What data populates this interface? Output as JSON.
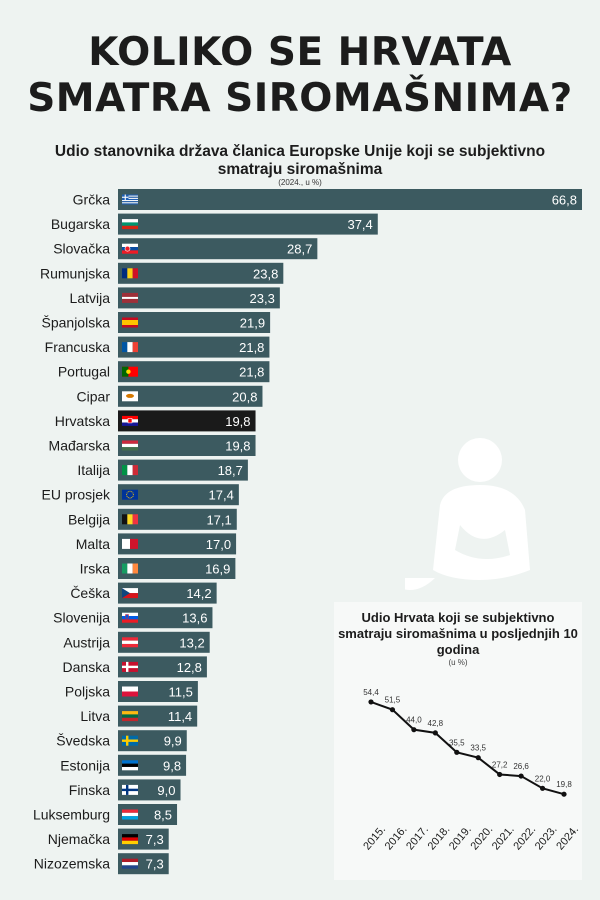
{
  "header": {
    "title_line1": "KOLIKO SE HRVATA",
    "title_line2": "SMATRA SIROMAŠNIMA?",
    "subtitle": "Udio stanovnika država članica Europske Unije koji se subjektivno smatraju siromašnima",
    "unit": "(2024., u %)"
  },
  "colors": {
    "bar": "#3c5a60",
    "highlight": "#1a1a1a",
    "background": "#eef3f1",
    "line": "#111111"
  },
  "chart_data": [
    {
      "type": "bar",
      "orientation": "horizontal",
      "title": "Udio stanovnika država članica Europske Unije koji se subjektivno smatraju siromašnima",
      "unit": "(2024., u %)",
      "xlim": [
        0,
        66.8
      ],
      "highlight": "Hrvatska",
      "categories": [
        "Grčka",
        "Bugarska",
        "Slovačka",
        "Rumunjska",
        "Latvija",
        "Španjolska",
        "Francuska",
        "Portugal",
        "Cipar",
        "Hrvatska",
        "Mađarska",
        "Italija",
        "EU prosjek",
        "Belgija",
        "Malta",
        "Irska",
        "Češka",
        "Slovenija",
        "Austrija",
        "Danska",
        "Poljska",
        "Litva",
        "Švedska",
        "Estonija",
        "Finska",
        "Luksemburg",
        "Njemačka",
        "Nizozemska"
      ],
      "values": [
        66.8,
        37.4,
        28.7,
        23.8,
        23.3,
        21.9,
        21.8,
        21.8,
        20.8,
        19.8,
        19.8,
        18.7,
        17.4,
        17.1,
        17.0,
        16.9,
        14.2,
        13.6,
        13.2,
        12.8,
        11.5,
        11.4,
        9.9,
        9.8,
        9.0,
        8.5,
        7.3,
        7.3
      ],
      "labels": [
        "66,8",
        "37,4",
        "28,7",
        "23,8",
        "23,3",
        "21,9",
        "21,8",
        "21,8",
        "20,8",
        "19,8",
        "19,8",
        "18,7",
        "17,4",
        "17,1",
        "17,0",
        "16,9",
        "14,2",
        "13,6",
        "13,2",
        "12,8",
        "11,5",
        "11,4",
        "9,9",
        "9,8",
        "9,0",
        "8,5",
        "7,3",
        "7,3"
      ],
      "flags": [
        "greece-flag-icon",
        "bulgaria-flag-icon",
        "slovakia-flag-icon",
        "romania-flag-icon",
        "latvia-flag-icon",
        "spain-flag-icon",
        "france-flag-icon",
        "portugal-flag-icon",
        "cyprus-flag-icon",
        "croatia-flag-icon",
        "hungary-flag-icon",
        "italy-flag-icon",
        "eu-flag-icon",
        "belgium-flag-icon",
        "malta-flag-icon",
        "ireland-flag-icon",
        "czechia-flag-icon",
        "slovenia-flag-icon",
        "austria-flag-icon",
        "denmark-flag-icon",
        "poland-flag-icon",
        "lithuania-flag-icon",
        "sweden-flag-icon",
        "estonia-flag-icon",
        "finland-flag-icon",
        "luxembourg-flag-icon",
        "germany-flag-icon",
        "netherlands-flag-icon"
      ]
    },
    {
      "type": "line",
      "title": "Udio Hrvata koji se subjektivno smatraju siromašnima u posljednjih 10 godina",
      "unit": "(u %)",
      "x": [
        "2015.",
        "2016.",
        "2017.",
        "2018.",
        "2019.",
        "2020.",
        "2021.",
        "2022.",
        "2023.",
        "2024."
      ],
      "y": [
        54.4,
        51.5,
        44.0,
        42.8,
        35.5,
        33.5,
        27.2,
        26.6,
        22.0,
        19.8
      ],
      "labels": [
        "54,4",
        "51,5",
        "44,0",
        "42,8",
        "35,5",
        "33,5",
        "27,2",
        "26,6",
        "22,0",
        "19,8"
      ],
      "ylim": [
        15,
        60
      ]
    }
  ]
}
